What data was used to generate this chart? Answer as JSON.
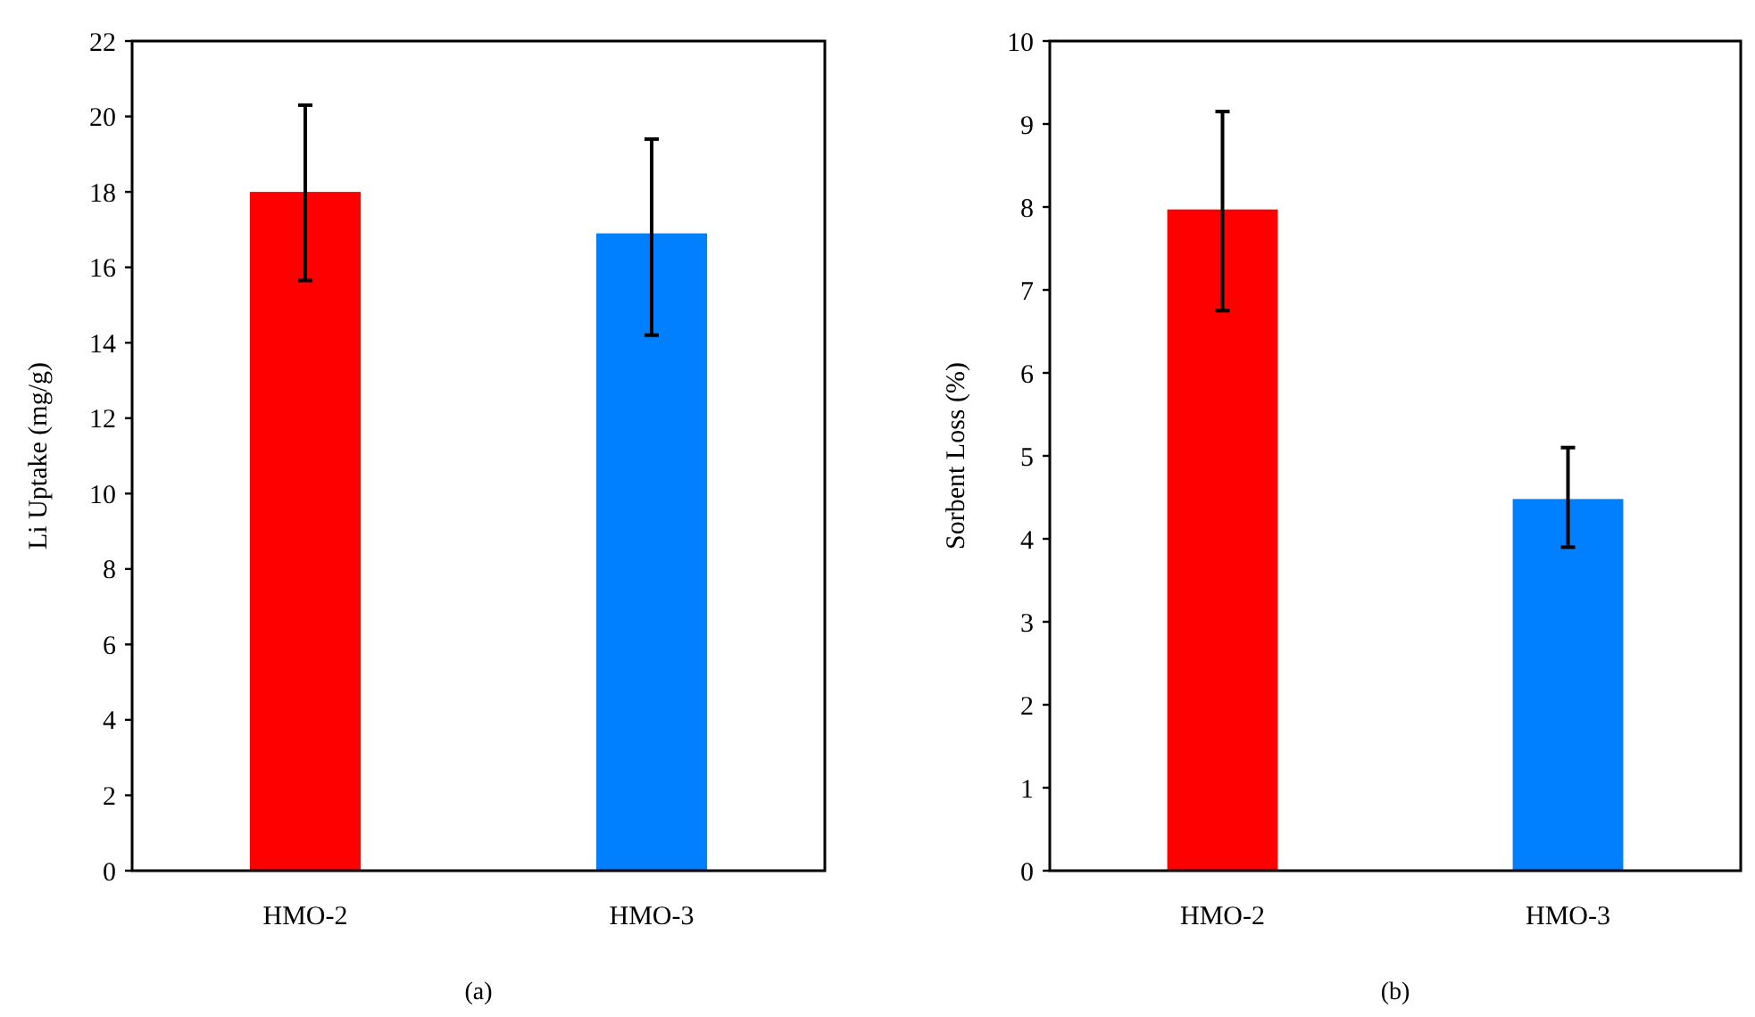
{
  "chart_data": [
    {
      "type": "bar",
      "ylabel": "Li Uptake (mg/g)",
      "categories": [
        "HMO-2",
        "HMO-3"
      ],
      "values": [
        18.0,
        16.9
      ],
      "colors": [
        "#ff0000",
        "#0080ff"
      ],
      "errors": [
        [
          15.65,
          20.3
        ],
        [
          14.2,
          19.4
        ]
      ],
      "ylim": [
        0,
        22
      ],
      "yticks": [
        0,
        2,
        4,
        6,
        8,
        10,
        12,
        14,
        16,
        18,
        20,
        22
      ],
      "grid": false,
      "annotations": [
        "(a)"
      ]
    },
    {
      "type": "bar",
      "ylabel": "Sorbent Loss (%)",
      "categories": [
        "HMO-2",
        "HMO-3"
      ],
      "values": [
        7.97,
        4.48
      ],
      "colors": [
        "#ff0000",
        "#0080ff"
      ],
      "errors": [
        [
          6.75,
          9.15
        ],
        [
          3.9,
          5.1
        ]
      ],
      "ylim": [
        0,
        10
      ],
      "yticks": [
        0,
        1,
        2,
        3,
        4,
        5,
        6,
        7,
        8,
        9,
        10
      ],
      "grid": false,
      "annotations": [
        "(b)"
      ]
    }
  ]
}
